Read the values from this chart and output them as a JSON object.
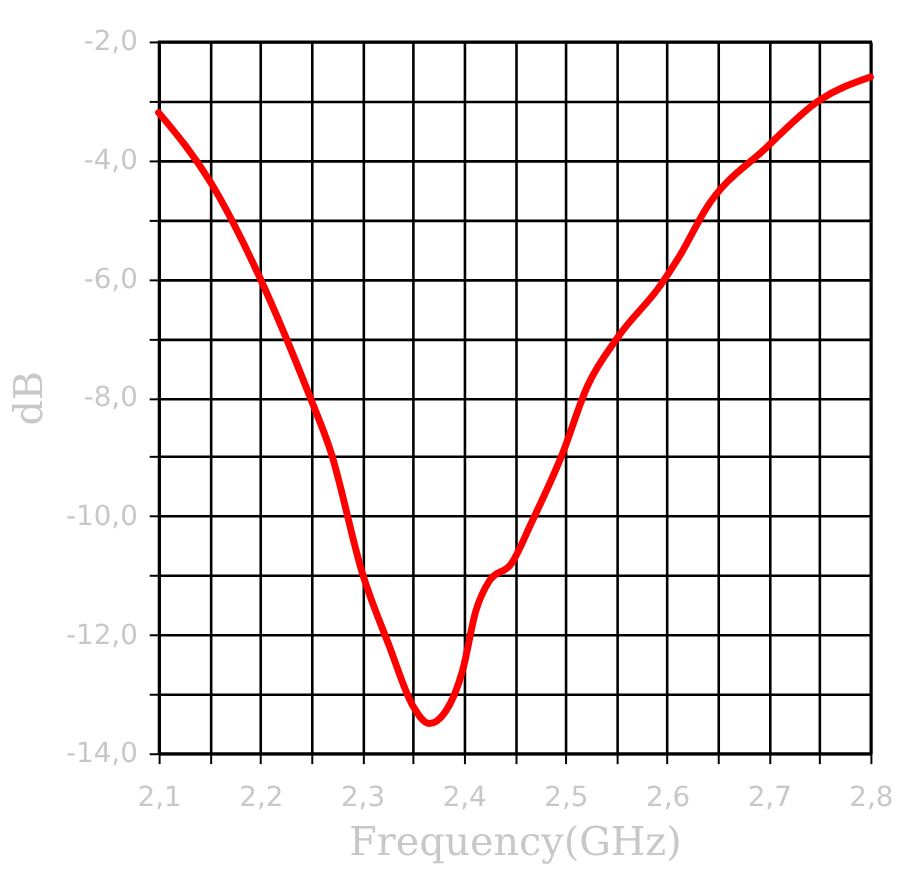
{
  "chart_data": {
    "type": "line",
    "xlabel": "Frequency(GHz)",
    "ylabel": "dB",
    "x": [
      2.1,
      2.152,
      2.2,
      2.223,
      2.249,
      2.269,
      2.301,
      2.327,
      2.35,
      2.366,
      2.382,
      2.399,
      2.412,
      2.425,
      2.447,
      2.467,
      2.496,
      2.522,
      2.551,
      2.594,
      2.613,
      2.639,
      2.697,
      2.749,
      2.8
    ],
    "series": [
      {
        "color": "#ff0000",
        "values": [
          -3.2,
          -4.4,
          -6.0,
          -6.9,
          -8.0,
          -8.9,
          -11.0,
          -12.2,
          -13.2,
          -13.5,
          -13.3,
          -12.6,
          -11.6,
          -11.1,
          -10.8,
          -10.1,
          -9.0,
          -7.8,
          -7.0,
          -6.1,
          -5.6,
          -4.8,
          -3.8,
          -3.0,
          -2.6
        ]
      }
    ],
    "xlim": [
      2.1,
      2.8
    ],
    "xticks": [
      {
        "value": 2.1,
        "label": "2,1"
      },
      {
        "value": 2.15,
        "label": null
      },
      {
        "value": 2.2,
        "label": "2,2"
      },
      {
        "value": 2.25,
        "label": null
      },
      {
        "value": 2.3,
        "label": "2,3"
      },
      {
        "value": 2.35,
        "label": null
      },
      {
        "value": 2.4,
        "label": "2,4"
      },
      {
        "value": 2.45,
        "label": null
      },
      {
        "value": 2.5,
        "label": "2,5"
      },
      {
        "value": 2.55,
        "label": null
      },
      {
        "value": 2.6,
        "label": "2,6"
      },
      {
        "value": 2.65,
        "label": null
      },
      {
        "value": 2.7,
        "label": "2,7"
      },
      {
        "value": 2.75,
        "label": null
      },
      {
        "value": 2.8,
        "label": "2,8"
      }
    ],
    "ylim": [
      -14,
      -2
    ],
    "yticks": [
      {
        "value": -14,
        "label": "-14,0"
      },
      {
        "value": -13,
        "label": null
      },
      {
        "value": -12,
        "label": "-12,0"
      },
      {
        "value": -11,
        "label": null
      },
      {
        "value": -10,
        "label": "-10,0"
      },
      {
        "value": -9,
        "label": null
      },
      {
        "value": -8,
        "label": "-8,0"
      },
      {
        "value": -7,
        "label": null
      },
      {
        "value": -6,
        "label": "-6,0"
      },
      {
        "value": -5,
        "label": null
      },
      {
        "value": -4,
        "label": "-4,0"
      },
      {
        "value": -3,
        "label": null
      },
      {
        "value": -2,
        "label": "-2,0"
      }
    ],
    "grid": true,
    "legend": false,
    "marker": "none",
    "line_style": "solid"
  }
}
